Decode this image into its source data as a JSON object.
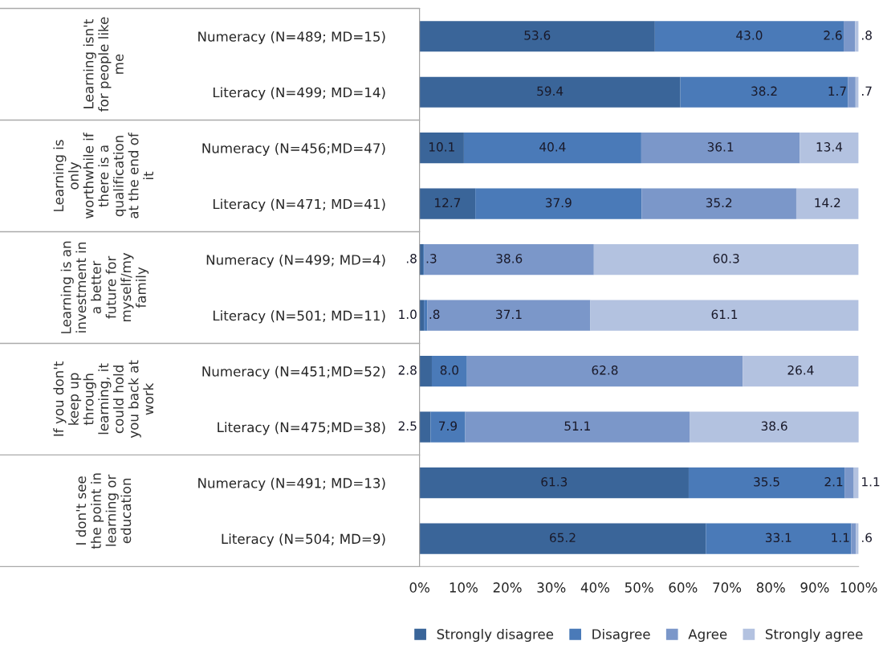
{
  "chart_data": {
    "type": "bar",
    "orientation": "horizontal",
    "stacked": true,
    "categories": [
      "Numeracy (N=489; MD=15)",
      "Literacy (N=499; MD=14)",
      "Numeracy (N=456;MD=47)",
      "Literacy (N=471; MD=41)",
      "Numeracy (N=499; MD=4)",
      "Literacy (N=501; MD=11)",
      "Numeracy (N=451;MD=52)",
      "Literacy (N=475;MD=38)",
      "Numeracy (N=491; MD=13)",
      "Literacy (N=504; MD=9)"
    ],
    "series": [
      {
        "name": "Strongly disagree",
        "color": "#3a6599",
        "values": [
          53.6,
          59.4,
          10.1,
          12.7,
          0.8,
          1.0,
          2.8,
          2.5,
          61.3,
          65.2
        ],
        "value_labels": [
          "53.6",
          "59.4",
          "10.1",
          "12.7",
          ".8",
          "1.0",
          "2.8",
          "2.5",
          "61.3",
          "65.2"
        ]
      },
      {
        "name": "Disagree",
        "color": "#4a7ab8",
        "values": [
          43.0,
          38.2,
          40.4,
          37.9,
          0.3,
          0.8,
          8.0,
          7.9,
          35.5,
          33.1
        ],
        "value_labels": [
          "43.0",
          "38.2",
          "40.4",
          "37.9",
          ".3",
          ".8",
          "8.0",
          "7.9",
          "35.5",
          "33.1"
        ]
      },
      {
        "name": "Agree",
        "color": "#7b97c9",
        "values": [
          2.6,
          1.7,
          36.1,
          35.2,
          38.6,
          37.1,
          62.8,
          51.1,
          2.1,
          1.1
        ],
        "value_labels": [
          "2.6",
          "1.7",
          "36.1",
          "35.2",
          "38.6",
          "37.1",
          "62.8",
          "51.1",
          "2.1",
          "1.1"
        ]
      },
      {
        "name": "Strongly agree",
        "color": "#b3c2e0",
        "values": [
          0.8,
          0.7,
          13.4,
          14.2,
          60.3,
          61.1,
          26.4,
          38.6,
          1.1,
          0.6
        ],
        "value_labels": [
          ".8",
          ".7",
          "13.4",
          "14.2",
          "60.3",
          "61.1",
          "26.4",
          "38.6",
          "1.1",
          ".6"
        ]
      }
    ],
    "annotations": [
      "Learning isn't\nfor people like\nme",
      "Learning is\nonly\nworthwhile if\nthere is a\nqualification\nat the end of\nit",
      "Learning is an\ninvestment in\na better\nfuture for\nmyself/my\nfamily",
      "If you don't\nkeep up\nthrough\nlearning, it\ncould hold\nyou back at\nwork",
      "I don't see\nthe point in\nlearning or\neducation"
    ],
    "xlim": [
      0,
      100
    ],
    "xticks": [
      {
        "value": 0,
        "label": "0%"
      },
      {
        "value": 10,
        "label": "10%"
      },
      {
        "value": 20,
        "label": "20%"
      },
      {
        "value": 30,
        "label": "30%"
      },
      {
        "value": 40,
        "label": "40%"
      },
      {
        "value": 50,
        "label": "50%"
      },
      {
        "value": 60,
        "label": "60%"
      },
      {
        "value": 70,
        "label": "70%"
      },
      {
        "value": 80,
        "label": "80%"
      },
      {
        "value": 90,
        "label": "90%"
      },
      {
        "value": 100,
        "label": "100%"
      }
    ],
    "legend": "bottom",
    "grid": false
  }
}
